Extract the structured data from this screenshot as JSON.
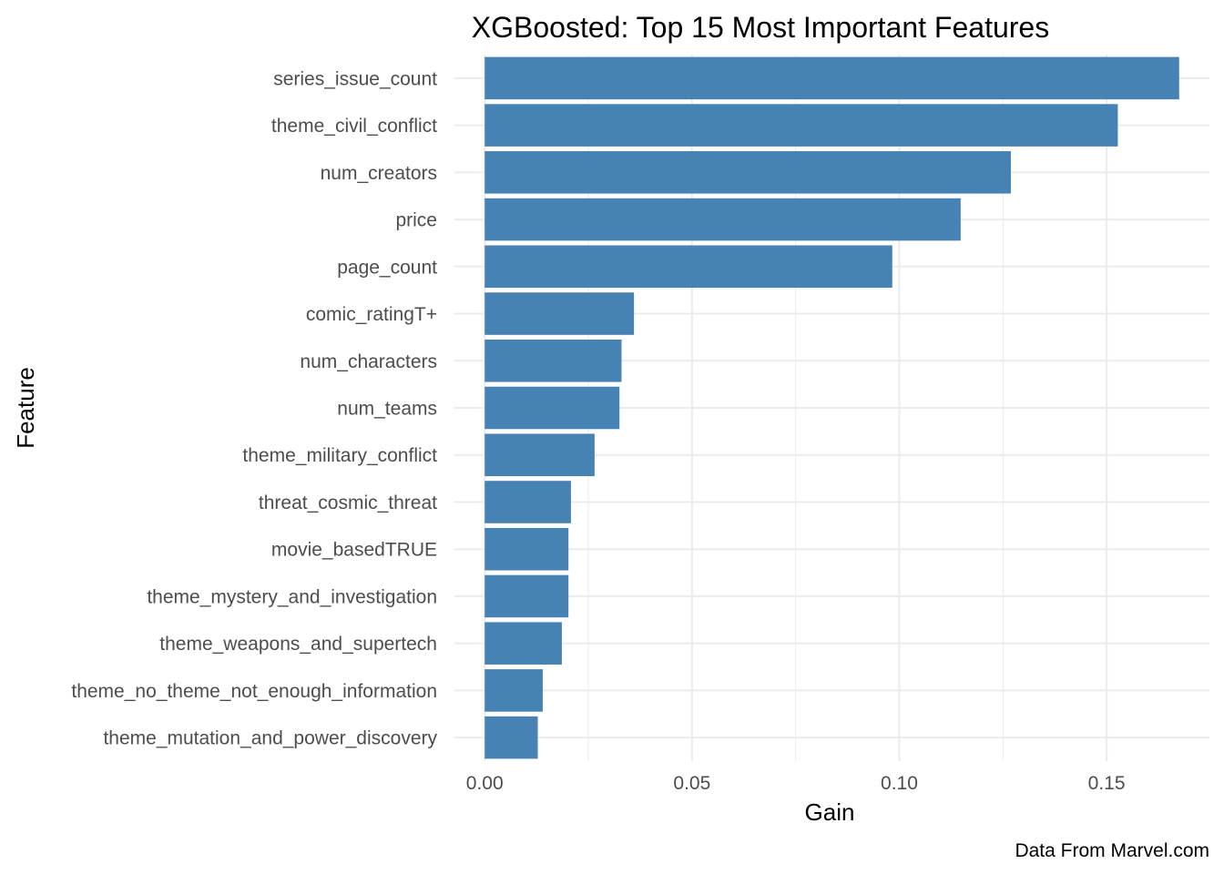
{
  "chart_data": {
    "type": "bar",
    "orientation": "horizontal",
    "title": "XGBoosted: Top 15 Most Important Features",
    "xlabel": "Gain",
    "ylabel": "Feature",
    "caption": "Data From Marvel.com",
    "categories": [
      "series_issue_count",
      "theme_civil_conflict",
      "num_creators",
      "price",
      "page_count",
      "comic_ratingT+",
      "num_characters",
      "num_teams",
      "theme_military_conflict",
      "threat_cosmic_threat",
      "movie_basedTRUE",
      "theme_mystery_and_investigation",
      "theme_weapons_and_supertech",
      "theme_no_theme_not_enough_information",
      "theme_mutation_and_power_discovery"
    ],
    "values": [
      0.1675,
      0.1527,
      0.1269,
      0.1148,
      0.0983,
      0.036,
      0.033,
      0.0325,
      0.0265,
      0.0208,
      0.0202,
      0.0202,
      0.0186,
      0.014,
      0.0128
    ],
    "xlim": [
      -0.0073,
      0.1748
    ],
    "xticks": [
      "0.00",
      "0.05",
      "0.10",
      "0.15"
    ],
    "xtick_values": [
      0,
      0.05,
      0.1,
      0.15
    ],
    "grid": true,
    "bar_color": "#4682B4",
    "grid_color": "#EBEBEB"
  }
}
